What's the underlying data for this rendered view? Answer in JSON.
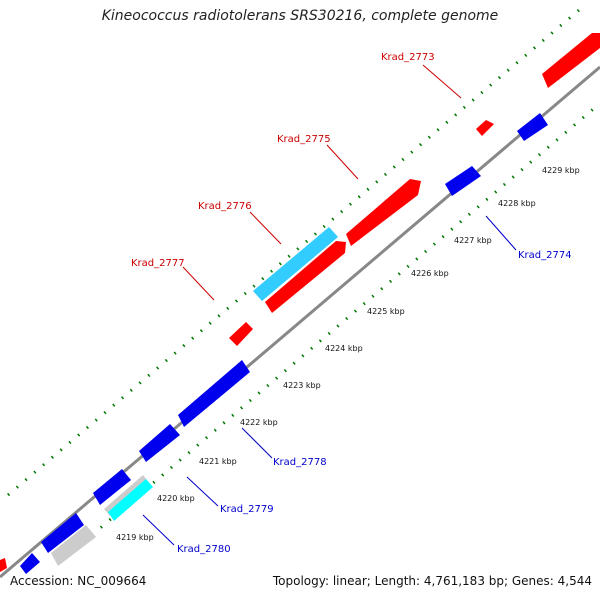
{
  "title": "Kineococcus radiotolerans SRS30216, complete genome",
  "accession_text": "Accession: NC_009664",
  "summary_text": "Topology: linear; Length: 4,761,183 bp; Genes: 4,544",
  "colors": {
    "forward_gene": "#ff0000",
    "reverse_gene": "#0000ee",
    "forward_rna": "#33ccff",
    "reverse_rna": "#00ffff",
    "other_feature": "#cccccc",
    "backbone": "#888888",
    "ticks": "#007700",
    "forward_label": "#cc0000",
    "reverse_label": "#0000cc"
  },
  "scale": {
    "ticks": [
      {
        "label": "4219 kbp"
      },
      {
        "label": "4220 kbp"
      },
      {
        "label": "4221 kbp"
      },
      {
        "label": "4222 kbp"
      },
      {
        "label": "4223 kbp"
      },
      {
        "label": "4224 kbp"
      },
      {
        "label": "4225 kbp"
      },
      {
        "label": "4226 kbp"
      },
      {
        "label": "4227 kbp"
      },
      {
        "label": "4228 kbp"
      },
      {
        "label": "4229 kbp"
      }
    ]
  },
  "genes": [
    {
      "label": "Krad_2773",
      "strand": "forward"
    },
    {
      "label": "Krad_2774",
      "strand": "reverse"
    },
    {
      "label": "Krad_2775",
      "strand": "forward"
    },
    {
      "label": "Krad_2776",
      "strand": "forward"
    },
    {
      "label": "Krad_2777",
      "strand": "forward"
    },
    {
      "label": "Krad_2778",
      "strand": "reverse"
    },
    {
      "label": "Krad_2779",
      "strand": "reverse"
    },
    {
      "label": "Krad_2780",
      "strand": "reverse"
    }
  ]
}
